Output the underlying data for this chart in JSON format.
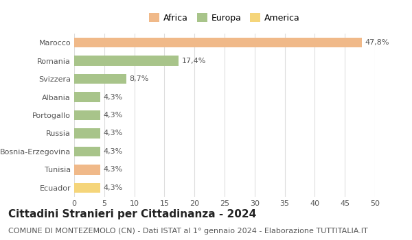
{
  "categories": [
    "Marocco",
    "Romania",
    "Svizzera",
    "Albania",
    "Portogallo",
    "Russia",
    "Bosnia-Erzegovina",
    "Tunisia",
    "Ecuador"
  ],
  "values": [
    47.8,
    17.4,
    8.7,
    4.3,
    4.3,
    4.3,
    4.3,
    4.3,
    4.3
  ],
  "labels": [
    "47,8%",
    "17,4%",
    "8,7%",
    "4,3%",
    "4,3%",
    "4,3%",
    "4,3%",
    "4,3%",
    "4,3%"
  ],
  "bar_colors": [
    "#f0b989",
    "#a8c48a",
    "#a8c48a",
    "#a8c48a",
    "#a8c48a",
    "#a8c48a",
    "#a8c48a",
    "#f0b989",
    "#f5d57a"
  ],
  "legend_labels": [
    "Africa",
    "Europa",
    "America"
  ],
  "legend_colors": [
    "#f0b989",
    "#a8c48a",
    "#f5d57a"
  ],
  "xlim": [
    0,
    50
  ],
  "xticks": [
    0,
    5,
    10,
    15,
    20,
    25,
    30,
    35,
    40,
    45,
    50
  ],
  "title": "Cittadini Stranieri per Cittadinanza - 2024",
  "subtitle": "COMUNE DI MONTEZEMOLO (CN) - Dati ISTAT al 1° gennaio 2024 - Elaborazione TUTTITALIA.IT",
  "background_color": "#ffffff",
  "grid_color": "#dddddd",
  "bar_height": 0.55,
  "label_fontsize": 8,
  "tick_fontsize": 8,
  "title_fontsize": 11,
  "subtitle_fontsize": 8
}
